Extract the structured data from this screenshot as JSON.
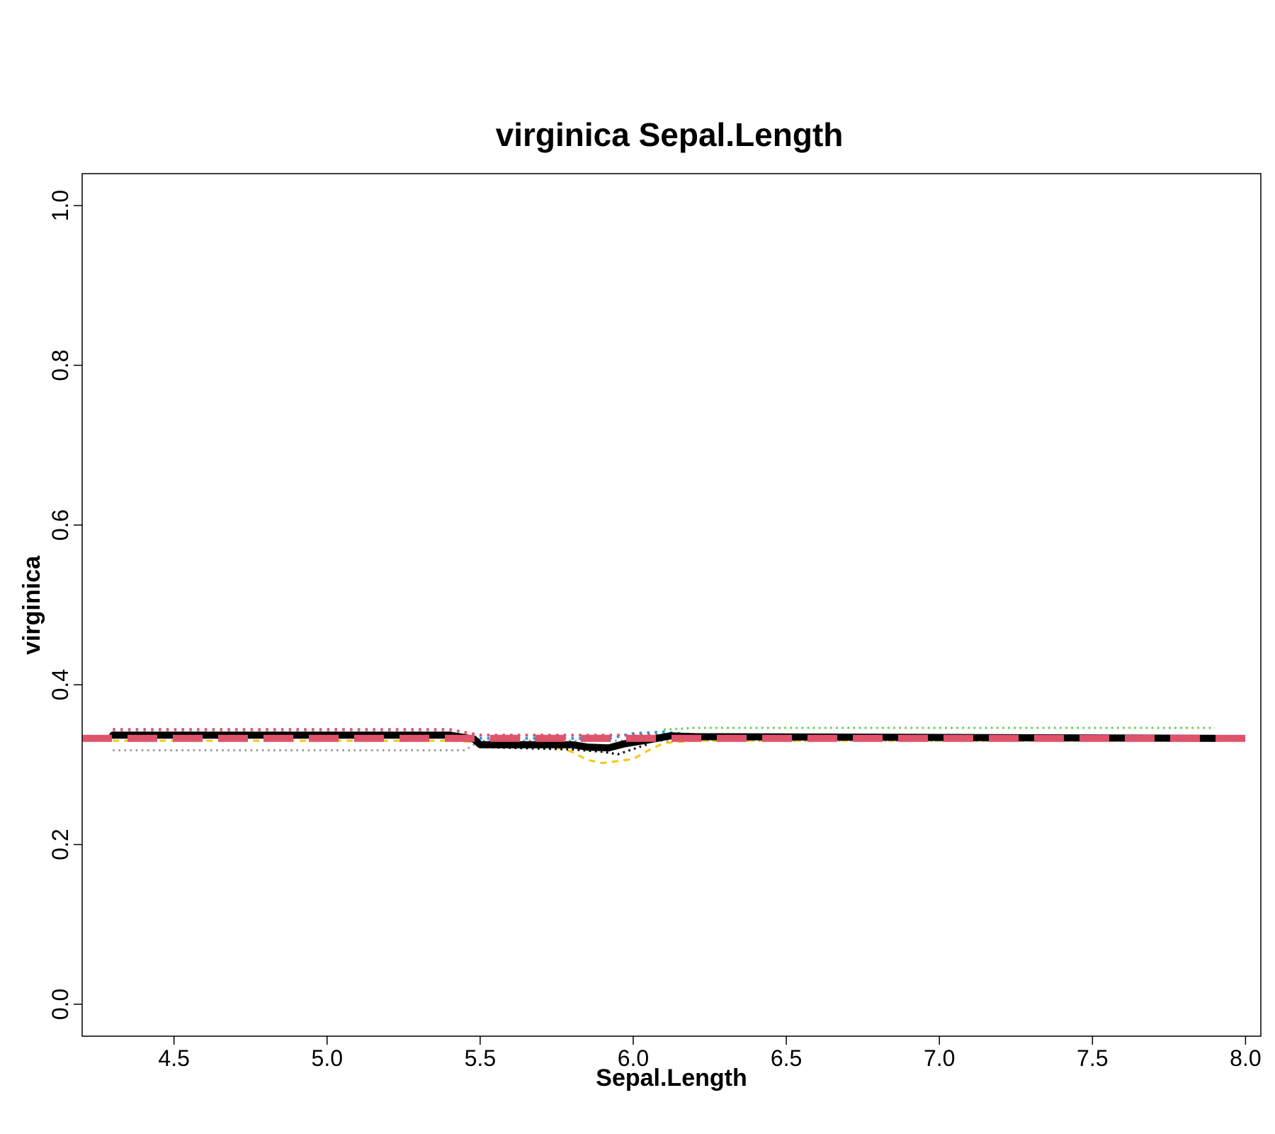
{
  "chart_data": {
    "type": "line",
    "title": "virginica  Sepal.Length",
    "xlabel": "Sepal.Length",
    "ylabel": "virginica",
    "xlim": [
      4.2,
      8.05
    ],
    "ylim": [
      -0.04,
      1.04
    ],
    "xticks": [
      4.5,
      5.0,
      5.5,
      6.0,
      6.5,
      7.0,
      7.5,
      8.0
    ],
    "xtick_labels": [
      "4.5",
      "5.0",
      "5.5",
      "6.0",
      "6.5",
      "7.0",
      "7.5",
      "8.0"
    ],
    "yticks": [
      0.0,
      0.2,
      0.4,
      0.6,
      0.8,
      1.0
    ],
    "ytick_labels": [
      "0.0",
      "0.2",
      "0.4",
      "0.6",
      "0.8",
      "1.0"
    ],
    "grid": false,
    "series": [
      {
        "color": "#9E9E9E",
        "style": "dotted",
        "width": 3,
        "x": [
          4.3,
          5.45,
          5.5,
          7.9
        ],
        "y": [
          0.318,
          0.318,
          0.33,
          0.33
        ]
      },
      {
        "color": "#F5C710",
        "style": "dashed",
        "width": 3,
        "x": [
          4.3,
          5.4,
          5.5,
          5.7,
          5.8,
          5.85,
          5.9,
          6.0,
          6.05,
          6.1,
          6.2,
          6.3,
          7.9
        ],
        "y": [
          0.33,
          0.33,
          0.328,
          0.326,
          0.316,
          0.306,
          0.302,
          0.307,
          0.318,
          0.327,
          0.33,
          0.33,
          0.33
        ]
      },
      {
        "color": "#2297E6",
        "style": "dotted",
        "width": 4,
        "x": [
          4.3,
          5.4,
          5.5,
          5.85,
          5.9,
          6.0,
          6.1,
          6.2,
          7.9
        ],
        "y": [
          0.34,
          0.34,
          0.333,
          0.333,
          0.331,
          0.339,
          0.341,
          0.337,
          0.333
        ]
      },
      {
        "color": "#DF536B",
        "style": "dotted",
        "width": 4,
        "x": [
          4.3,
          5.4,
          5.5,
          6.1,
          7.9
        ],
        "y": [
          0.344,
          0.344,
          0.337,
          0.337,
          0.333
        ]
      },
      {
        "color": "#61D04F",
        "style": "dotted",
        "width": 3,
        "x": [
          6.1,
          6.2,
          7.9
        ],
        "y": [
          0.344,
          0.346,
          0.346
        ]
      },
      {
        "color": "#000000",
        "style": "dotted",
        "width": 3,
        "x": [
          5.5,
          5.8,
          5.9,
          5.95,
          6.05
        ],
        "y": [
          0.322,
          0.319,
          0.316,
          0.313,
          0.326
        ]
      },
      {
        "color": "#000000",
        "style": "solid",
        "width": 10,
        "x": [
          4.3,
          5.4,
          5.48,
          5.5,
          5.8,
          5.85,
          5.92,
          5.97,
          6.05,
          6.12,
          6.2,
          7.9
        ],
        "y": [
          0.337,
          0.337,
          0.332,
          0.325,
          0.325,
          0.322,
          0.321,
          0.326,
          0.331,
          0.336,
          0.335,
          0.333
        ]
      },
      {
        "color": "#DF536B",
        "style": "longdash",
        "width": 10,
        "x": [
          4.2,
          8.05
        ],
        "y": [
          0.333,
          0.333
        ]
      }
    ]
  }
}
